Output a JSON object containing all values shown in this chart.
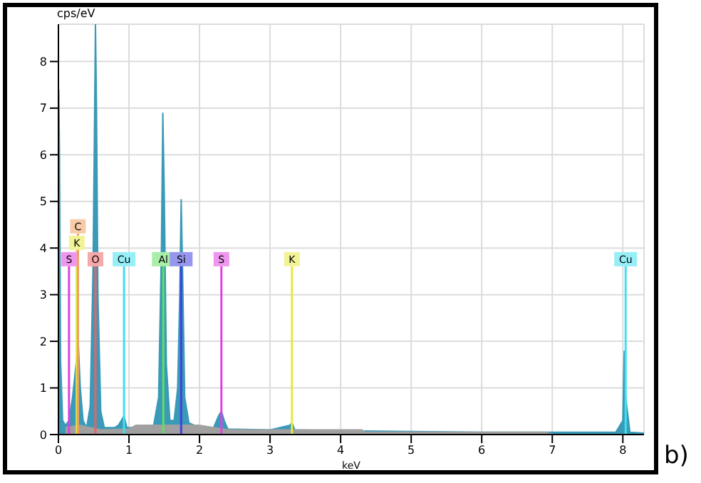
{
  "chart_data": {
    "type": "area",
    "xlabel": "keV",
    "ylabel": "cps/eV",
    "annotations": [
      "b)"
    ],
    "xlim": [
      0,
      8.3
    ],
    "xticks": [
      0,
      1,
      2,
      3,
      4,
      5,
      6,
      7,
      8
    ],
    "ylim": [
      0,
      8.8
    ],
    "yticks": [
      0,
      1,
      2,
      3,
      4,
      5,
      6,
      7,
      8
    ],
    "grid": true,
    "legend": false,
    "series": [
      {
        "color": "#3a9ab8",
        "x": [
          0,
          0.005,
          0.015,
          0.03,
          0.06,
          0.1,
          0.15,
          0.2,
          0.25,
          0.28,
          0.31,
          0.35,
          0.4,
          0.45,
          0.49,
          0.51,
          0.525,
          0.54,
          0.56,
          0.6,
          0.65,
          0.8,
          0.85,
          0.93,
          0.97,
          1.2,
          1.35,
          1.42,
          1.46,
          1.48,
          1.5,
          1.53,
          1.58,
          1.64,
          1.69,
          1.72,
          1.74,
          1.76,
          1.79,
          1.85,
          2.0,
          2.2,
          2.27,
          2.31,
          2.35,
          2.4,
          3.0,
          3.28,
          3.31,
          3.35,
          4.0,
          6.0,
          7.9,
          8.0,
          8.02,
          8.04,
          8.1,
          8.3
        ],
        "values": [
          0,
          7.4,
          6.0,
          1.6,
          0.3,
          0.2,
          0.3,
          0.8,
          1.5,
          2.0,
          1.0,
          0.3,
          0.15,
          0.6,
          3.5,
          6.4,
          8.8,
          7.0,
          3.0,
          0.5,
          0.15,
          0.15,
          0.2,
          0.4,
          0.15,
          0.15,
          0.2,
          0.8,
          4.0,
          6.9,
          5.2,
          1.5,
          0.3,
          0.3,
          1.0,
          3.0,
          5.05,
          3.5,
          0.8,
          0.25,
          0.15,
          0.15,
          0.4,
          0.5,
          0.3,
          0.12,
          0.1,
          0.2,
          0.25,
          0.1,
          0.08,
          0.05,
          0.05,
          0.3,
          1.8,
          0.8,
          0.05,
          0.03
        ]
      },
      {
        "color": "#a0a0a0",
        "x": [
          0.1,
          0.3,
          0.6,
          1.0,
          1.1,
          2.0,
          2.4,
          4.3,
          4.35,
          6.9,
          7.0
        ],
        "values": [
          0.15,
          0.2,
          0.1,
          0.12,
          0.2,
          0.2,
          0.1,
          0.1,
          0.05,
          0.05,
          0
        ]
      }
    ],
    "ref_lines": [
      {
        "axis": "x",
        "value": 0.15,
        "label": "S",
        "color": "#e040e0"
      },
      {
        "axis": "x",
        "value": 0.26,
        "label": "K",
        "color": "#e8e840"
      },
      {
        "axis": "x",
        "value": 0.277,
        "label": "C",
        "color": "#f0a060"
      },
      {
        "axis": "x",
        "value": 0.525,
        "label": "O",
        "color": "#f06060"
      },
      {
        "axis": "x",
        "value": 0.93,
        "label": "Cu",
        "color": "#40e0f0"
      },
      {
        "axis": "x",
        "value": 1.487,
        "label": "Al",
        "color": "#60e060"
      },
      {
        "axis": "x",
        "value": 1.74,
        "label": "Si",
        "color": "#4040e0"
      },
      {
        "axis": "x",
        "value": 2.31,
        "label": "S",
        "color": "#e040e0"
      },
      {
        "axis": "x",
        "value": 3.31,
        "label": "K",
        "color": "#e8e840"
      },
      {
        "axis": "x",
        "value": 8.04,
        "label": "Cu",
        "color": "#40e0f0"
      }
    ]
  }
}
